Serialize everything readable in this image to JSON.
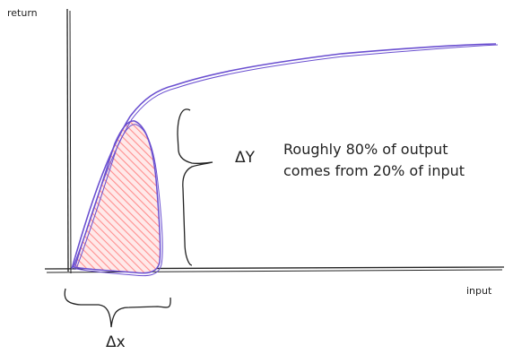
{
  "diagram": {
    "y_axis_label": "return",
    "x_axis_label": "input",
    "delta_y_label": "ΔY",
    "delta_x_label": "Δx",
    "annotation_lines": [
      "Roughly 80% of output",
      "comes from 20% of input"
    ]
  },
  "colors": {
    "curve": "#6a4fd0",
    "shaded_fill": "#ff8f8f",
    "ink": "#222222"
  }
}
